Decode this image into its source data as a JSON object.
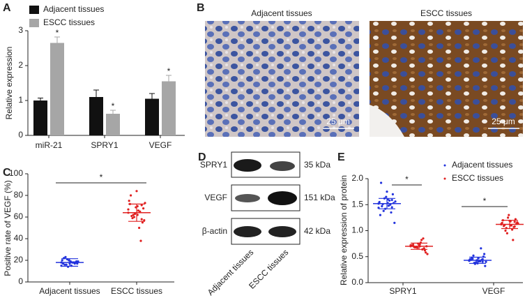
{
  "chart_data": [
    {
      "type": "bar",
      "panel": "A",
      "ylabel": "Relative expression",
      "categories": [
        "miR-21",
        "SPRY1",
        "VEGF"
      ],
      "series": [
        {
          "name": "Adjacent tissues",
          "color": "#111111",
          "values": [
            1.0,
            1.1,
            1.05
          ],
          "errors": [
            0.07,
            0.2,
            0.15
          ]
        },
        {
          "name": "ESCC tissues",
          "color": "#a6a6a6",
          "values": [
            2.65,
            0.62,
            1.55
          ],
          "errors": [
            0.17,
            0.1,
            0.17
          ],
          "annotations": [
            "*",
            "*",
            "*"
          ]
        }
      ],
      "ylim": [
        0,
        3
      ],
      "yticks": [
        0,
        1,
        2,
        3
      ]
    },
    {
      "type": "strip",
      "panel": "C",
      "ylabel": "Positive rate of VEGF (%)",
      "categories": [
        "Adjacent tissues",
        "ESCC tissues"
      ],
      "colors": [
        "#2233dd",
        "#e02020"
      ],
      "points": [
        [
          18,
          17,
          19,
          16,
          20,
          18,
          15,
          21,
          17,
          19,
          18,
          14,
          22,
          17,
          18,
          20,
          16,
          19,
          18,
          17,
          23,
          15,
          18,
          19
        ],
        [
          64,
          58,
          70,
          62,
          75,
          55,
          66,
          60,
          72,
          68,
          50,
          63,
          80,
          57,
          65,
          69,
          61,
          73,
          38,
          84,
          59,
          67,
          71,
          62
        ]
      ],
      "means": [
        18,
        64
      ],
      "sd": [
        3.5,
        8
      ],
      "significance": [
        "*"
      ],
      "ylim": [
        0,
        100
      ],
      "yticks": [
        0,
        20,
        40,
        60,
        80,
        100
      ]
    },
    {
      "type": "strip",
      "panel": "E",
      "ylabel": "Relative expression of protein",
      "categories": [
        "SPRY1",
        "VEGF"
      ],
      "series": [
        {
          "name": "Adjacent tissues",
          "color": "#2233dd",
          "points": [
            [
              1.52,
              1.45,
              1.6,
              1.38,
              1.55,
              1.7,
              1.48,
              1.62,
              1.3,
              1.53,
              1.58,
              1.42,
              1.92,
              1.15,
              1.5,
              1.65,
              1.47,
              1.56,
              1.35,
              1.75,
              1.51,
              1.44,
              1.59,
              1.53
            ],
            [
              0.43,
              0.4,
              0.47,
              0.38,
              0.45,
              0.5,
              0.42,
              0.36,
              0.44,
              0.55,
              0.41,
              0.39,
              0.48,
              0.32,
              0.66,
              0.43,
              0.46,
              0.4,
              0.44,
              0.37,
              0.52,
              0.42,
              0.45,
              0.41
            ]
          ],
          "means": [
            1.52,
            0.43
          ],
          "sd": [
            0.1,
            0.06
          ]
        },
        {
          "name": "ESCC tissues",
          "color": "#e02020",
          "points": [
            [
              0.7,
              0.66,
              0.74,
              0.68,
              0.72,
              0.62,
              0.77,
              0.69,
              0.71,
              0.58,
              0.82,
              0.67,
              0.73,
              0.7,
              0.64,
              0.75,
              0.69,
              0.55,
              0.85,
              0.71,
              0.68,
              0.72,
              0.66,
              0.7
            ],
            [
              1.12,
              1.08,
              1.18,
              1.05,
              1.15,
              1.22,
              1.1,
              0.95,
              1.2,
              1.13,
              1.02,
              1.25,
              1.09,
              1.16,
              0.82,
              1.3,
              1.11,
              1.14,
              1.07,
              1.19,
              1.0,
              1.13,
              1.17,
              1.1
            ]
          ],
          "means": [
            0.7,
            1.12
          ],
          "sd": [
            0.06,
            0.08
          ]
        }
      ],
      "significance": [
        "*",
        "*"
      ],
      "ylim": [
        0,
        2
      ],
      "yticks": [
        {
          "value": 0,
          "label": "0.0"
        },
        {
          "value": 0.5,
          "label": "0.5"
        },
        {
          "value": 1,
          "label": "1.0"
        },
        {
          "value": 1.5,
          "label": "1.5"
        },
        {
          "value": 2,
          "label": "2.0"
        }
      ]
    }
  ],
  "figure": {
    "panel_b": {
      "label": "B",
      "images": [
        {
          "title": "Adjacent tissues",
          "scale_bar": "25 μm"
        },
        {
          "title": "ESCC tissues",
          "scale_bar": "25 μm"
        }
      ]
    },
    "panel_d": {
      "label": "D",
      "rows": [
        {
          "protein": "SPRY1",
          "size": "35 kDa"
        },
        {
          "protein": "VEGF",
          "size": "151 kDa"
        },
        {
          "protein": "β-actin",
          "size": "42 kDa"
        }
      ],
      "lanes": [
        "Adjacent tissues",
        "ESCC tissues"
      ]
    }
  }
}
